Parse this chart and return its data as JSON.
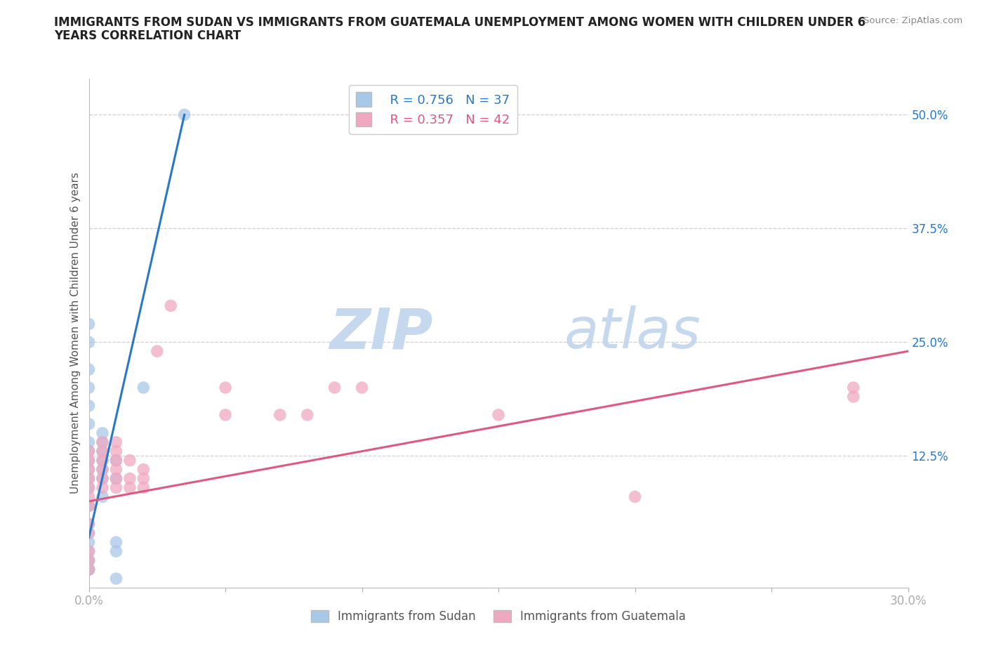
{
  "title_line1": "IMMIGRANTS FROM SUDAN VS IMMIGRANTS FROM GUATEMALA UNEMPLOYMENT AMONG WOMEN WITH CHILDREN UNDER 6",
  "title_line2": "YEARS CORRELATION CHART",
  "ylabel": "Unemployment Among Women with Children Under 6 years",
  "source_text": "Source: ZipAtlas.com",
  "xlim": [
    0.0,
    0.3
  ],
  "ylim": [
    -0.02,
    0.54
  ],
  "xticks": [
    0.0,
    0.05,
    0.1,
    0.15,
    0.2,
    0.25,
    0.3
  ],
  "xticklabels": [
    "0.0%",
    "",
    "",
    "",
    "",
    "",
    "30.0%"
  ],
  "ytick_right_vals": [
    0.0,
    0.125,
    0.25,
    0.375,
    0.5
  ],
  "ytick_right_labels": [
    "",
    "12.5%",
    "25.0%",
    "37.5%",
    "50.0%"
  ],
  "sudan_color": "#a8c8e8",
  "guatemala_color": "#f0a8c0",
  "sudan_line_color": "#2878c8",
  "guatemala_line_color": "#e05880",
  "R_sudan": 0.756,
  "N_sudan": 37,
  "R_guatemala": 0.357,
  "N_guatemala": 42,
  "watermark_zip": "ZIP",
  "watermark_atlas": "atlas",
  "watermark_color": "#dce8f5",
  "sudan_points": [
    [
      0.0,
      0.0
    ],
    [
      0.0,
      0.0
    ],
    [
      0.0,
      0.0
    ],
    [
      0.0,
      0.01
    ],
    [
      0.0,
      0.01
    ],
    [
      0.0,
      0.02
    ],
    [
      0.0,
      0.03
    ],
    [
      0.0,
      0.04
    ],
    [
      0.0,
      0.05
    ],
    [
      0.0,
      0.07
    ],
    [
      0.0,
      0.07
    ],
    [
      0.0,
      0.09
    ],
    [
      0.0,
      0.1
    ],
    [
      0.0,
      0.11
    ],
    [
      0.0,
      0.12
    ],
    [
      0.0,
      0.13
    ],
    [
      0.0,
      0.14
    ],
    [
      0.0,
      0.16
    ],
    [
      0.0,
      0.18
    ],
    [
      0.0,
      0.2
    ],
    [
      0.0,
      0.22
    ],
    [
      0.0,
      0.25
    ],
    [
      0.0,
      0.27
    ],
    [
      0.005,
      0.08
    ],
    [
      0.005,
      0.1
    ],
    [
      0.005,
      0.11
    ],
    [
      0.005,
      0.12
    ],
    [
      0.005,
      0.13
    ],
    [
      0.005,
      0.14
    ],
    [
      0.005,
      0.15
    ],
    [
      0.01,
      0.1
    ],
    [
      0.01,
      0.12
    ],
    [
      0.01,
      0.03
    ],
    [
      0.01,
      0.02
    ],
    [
      0.01,
      -0.01
    ],
    [
      0.02,
      0.2
    ],
    [
      0.035,
      0.5
    ]
  ],
  "guatemala_points": [
    [
      0.0,
      0.0
    ],
    [
      0.0,
      0.01
    ],
    [
      0.0,
      0.02
    ],
    [
      0.0,
      0.04
    ],
    [
      0.0,
      0.05
    ],
    [
      0.0,
      0.07
    ],
    [
      0.0,
      0.08
    ],
    [
      0.0,
      0.09
    ],
    [
      0.0,
      0.1
    ],
    [
      0.0,
      0.11
    ],
    [
      0.0,
      0.12
    ],
    [
      0.0,
      0.13
    ],
    [
      0.005,
      0.09
    ],
    [
      0.005,
      0.1
    ],
    [
      0.005,
      0.11
    ],
    [
      0.005,
      0.12
    ],
    [
      0.005,
      0.13
    ],
    [
      0.005,
      0.14
    ],
    [
      0.01,
      0.09
    ],
    [
      0.01,
      0.1
    ],
    [
      0.01,
      0.11
    ],
    [
      0.01,
      0.12
    ],
    [
      0.01,
      0.13
    ],
    [
      0.01,
      0.14
    ],
    [
      0.015,
      0.09
    ],
    [
      0.015,
      0.1
    ],
    [
      0.015,
      0.12
    ],
    [
      0.02,
      0.09
    ],
    [
      0.02,
      0.1
    ],
    [
      0.02,
      0.11
    ],
    [
      0.025,
      0.24
    ],
    [
      0.03,
      0.29
    ],
    [
      0.05,
      0.17
    ],
    [
      0.05,
      0.2
    ],
    [
      0.07,
      0.17
    ],
    [
      0.08,
      0.17
    ],
    [
      0.09,
      0.2
    ],
    [
      0.1,
      0.2
    ],
    [
      0.15,
      0.17
    ],
    [
      0.2,
      0.08
    ],
    [
      0.28,
      0.2
    ],
    [
      0.28,
      0.19
    ]
  ],
  "sudan_trendline": [
    [
      0.0,
      0.035
    ],
    [
      0.035,
      0.5
    ]
  ],
  "guatemala_trendline": [
    [
      0.0,
      0.075
    ],
    [
      0.3,
      0.24
    ]
  ]
}
